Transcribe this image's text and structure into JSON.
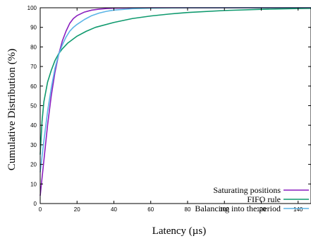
{
  "chart_data": {
    "type": "line",
    "title": "",
    "xlabel": "Latency (µs)",
    "ylabel": "Cumulative Distribution (%)",
    "xlim": [
      0,
      147
    ],
    "ylim": [
      0,
      100
    ],
    "xticks": [
      "0",
      "20",
      "40",
      "60",
      "80",
      "100",
      "120",
      "140"
    ],
    "yticks": [
      "0",
      "10",
      "20",
      "30",
      "40",
      "50",
      "60",
      "70",
      "80",
      "90",
      "100"
    ],
    "grid": false,
    "legend_position": "bottom-right",
    "series": [
      {
        "name": "Saturating positions",
        "color": "#8a1fbf",
        "x": [
          0,
          2,
          4,
          6,
          8,
          10,
          12,
          14,
          16,
          18,
          20,
          24,
          28,
          32,
          36,
          40,
          50,
          60,
          80,
          147
        ],
        "y": [
          4,
          22,
          40,
          55,
          67,
          76,
          83,
          88,
          92,
          94.5,
          96,
          97.8,
          98.8,
          99.3,
          99.6,
          99.8,
          99.95,
          100,
          100,
          100
        ]
      },
      {
        "name": "FIFO rule",
        "color": "#0f9a6e",
        "x": [
          0,
          1,
          2,
          4,
          6,
          8,
          10,
          12,
          15,
          20,
          25,
          30,
          40,
          50,
          60,
          70,
          80,
          100,
          120,
          140,
          147
        ],
        "y": [
          25,
          42,
          52,
          62,
          68,
          73,
          76.5,
          79,
          82,
          85.5,
          88,
          90,
          92.5,
          94.5,
          95.8,
          96.8,
          97.6,
          98.6,
          99.2,
          99.6,
          99.7
        ]
      },
      {
        "name": "Balancing into the period",
        "color": "#5ab4e6",
        "x": [
          0,
          2,
          4,
          6,
          8,
          10,
          12,
          14,
          16,
          18,
          20,
          24,
          28,
          32,
          36,
          40,
          50,
          60,
          80,
          147
        ],
        "y": [
          16,
          32,
          47,
          59,
          69,
          76,
          81,
          85,
          88,
          90,
          91.5,
          94,
          96,
          97.3,
          98.2,
          98.8,
          99.5,
          99.8,
          100,
          100
        ]
      }
    ]
  }
}
